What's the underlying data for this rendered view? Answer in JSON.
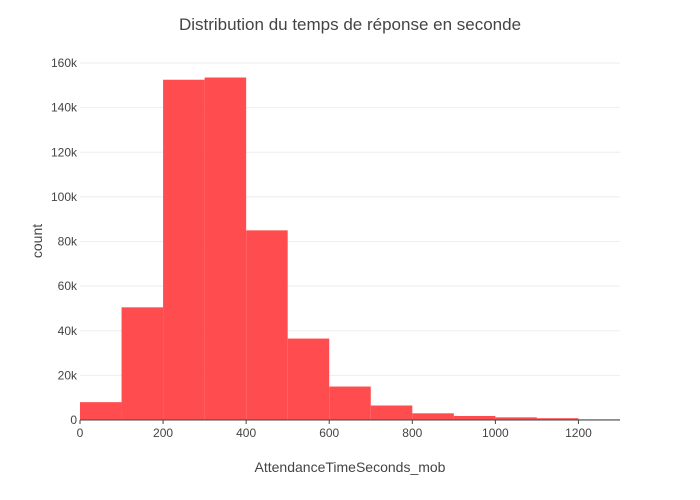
{
  "chart_data": {
    "type": "bar",
    "title": "Distribution du temps de réponse en seconde",
    "xlabel": "AttendanceTimeSeconds_mob",
    "ylabel": "count",
    "bin_width": 100,
    "bins": [
      {
        "start": 0,
        "end": 100,
        "count": 8000
      },
      {
        "start": 100,
        "end": 200,
        "count": 50500
      },
      {
        "start": 200,
        "end": 300,
        "count": 152500
      },
      {
        "start": 300,
        "end": 400,
        "count": 153500
      },
      {
        "start": 400,
        "end": 500,
        "count": 85000
      },
      {
        "start": 500,
        "end": 600,
        "count": 36500
      },
      {
        "start": 600,
        "end": 700,
        "count": 15000
      },
      {
        "start": 700,
        "end": 800,
        "count": 6500
      },
      {
        "start": 800,
        "end": 900,
        "count": 3000
      },
      {
        "start": 900,
        "end": 1000,
        "count": 1800
      },
      {
        "start": 1000,
        "end": 1100,
        "count": 1200
      },
      {
        "start": 1100,
        "end": 1200,
        "count": 800
      },
      {
        "start": 1200,
        "end": 1300,
        "count": 300
      }
    ],
    "xlim": [
      0,
      1300
    ],
    "ylim": [
      0,
      165000
    ],
    "x_ticks": [
      {
        "value": 0,
        "label": "0"
      },
      {
        "value": 200,
        "label": "200"
      },
      {
        "value": 400,
        "label": "400"
      },
      {
        "value": 600,
        "label": "600"
      },
      {
        "value": 800,
        "label": "800"
      },
      {
        "value": 1000,
        "label": "1000"
      },
      {
        "value": 1200,
        "label": "1200"
      }
    ],
    "y_ticks": [
      {
        "value": 0,
        "label": "0"
      },
      {
        "value": 20000,
        "label": "20k"
      },
      {
        "value": 40000,
        "label": "40k"
      },
      {
        "value": 60000,
        "label": "60k"
      },
      {
        "value": 80000,
        "label": "80k"
      },
      {
        "value": 100000,
        "label": "100k"
      },
      {
        "value": 120000,
        "label": "120k"
      },
      {
        "value": 140000,
        "label": "140k"
      },
      {
        "value": 160000,
        "label": "160k"
      }
    ],
    "bar_color": "#ff4d4f",
    "grid": true,
    "legend": false
  }
}
